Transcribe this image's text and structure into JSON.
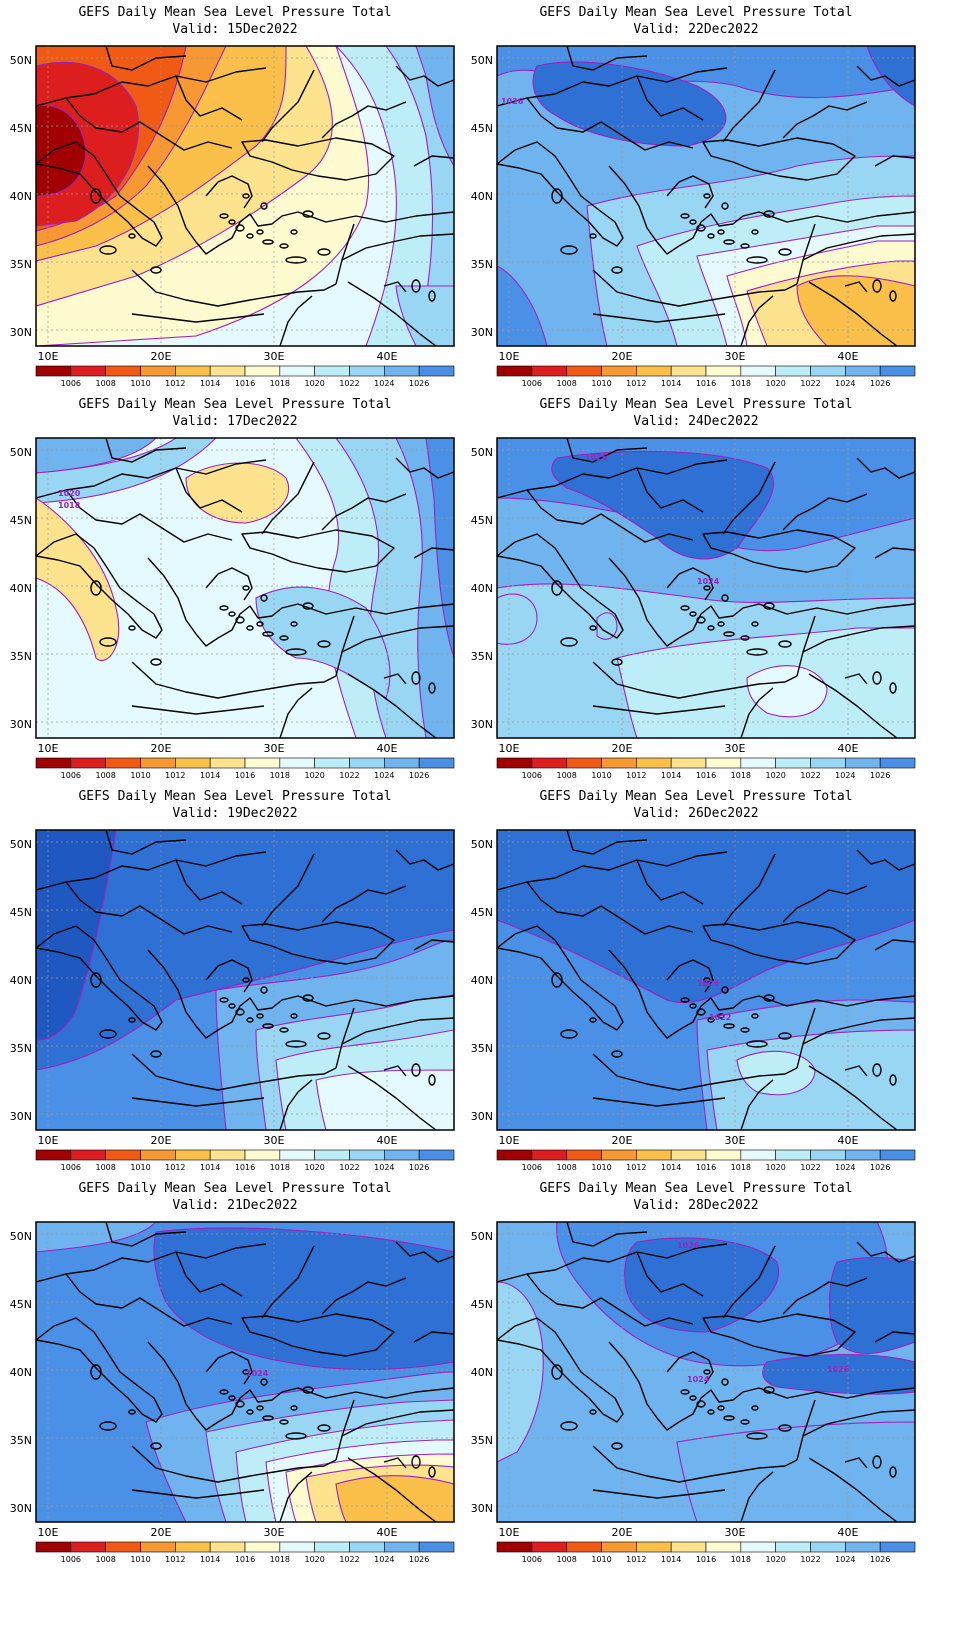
{
  "colors": {
    "bins": [
      "#a00000",
      "#dc1e1e",
      "#f05a14",
      "#f79832",
      "#fbc04a",
      "#fde38e",
      "#fffbd0",
      "#e4fafe",
      "#bdeef8",
      "#99d6f4",
      "#6fb4ee",
      "#4990e6",
      "#2f70d4",
      "#1e58c0"
    ],
    "contour": "#a020c0",
    "coast": "#000000",
    "gridline": "#9a9a9a"
  },
  "colorbar": {
    "labels": [
      "1006",
      "1008",
      "1010",
      "1012",
      "1014",
      "1016",
      "1018",
      "1020",
      "1022",
      "1024",
      "1026"
    ]
  },
  "axes": {
    "lat_labels": [
      "50N",
      "45N",
      "40N",
      "35N",
      "30N"
    ],
    "lon_labels": [
      "10E",
      "20E",
      "30E",
      "40E"
    ]
  },
  "panels": [
    {
      "title": "GEFS Daily Mean Sea Level Pressure Total",
      "valid": "Valid: 15Dec2022",
      "labels": []
    },
    {
      "title": "GEFS Daily Mean Sea Level Pressure Total",
      "valid": "Valid: 22Dec2022",
      "labels": [
        "1026"
      ]
    },
    {
      "title": "GEFS Daily Mean Sea Level Pressure Total",
      "valid": "Valid: 17Dec2022",
      "labels": [
        "1020",
        "1018"
      ]
    },
    {
      "title": "GEFS Daily Mean Sea Level Pressure Total",
      "valid": "Valid: 24Dec2022",
      "labels": [
        "1026",
        "1024"
      ]
    },
    {
      "title": "GEFS Daily Mean Sea Level Pressure Total",
      "valid": "Valid: 19Dec2022",
      "labels": []
    },
    {
      "title": "GEFS Daily Mean Sea Level Pressure Total",
      "valid": "Valid: 26Dec2022",
      "labels": [
        "1026",
        "1022"
      ]
    },
    {
      "title": "GEFS Daily Mean Sea Level Pressure Total",
      "valid": "Valid: 21Dec2022",
      "labels": [
        "1024"
      ]
    },
    {
      "title": "GEFS Daily Mean Sea Level Pressure Total",
      "valid": "Valid: 28Dec2022",
      "labels": [
        "1026",
        "1024",
        "1026"
      ]
    }
  ]
}
